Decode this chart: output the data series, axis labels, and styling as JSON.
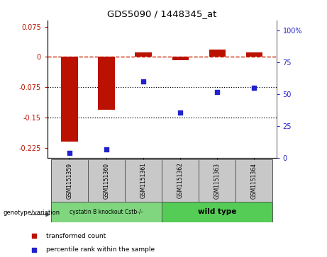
{
  "title": "GDS5090 / 1448345_at",
  "samples": [
    "GSM1151359",
    "GSM1151360",
    "GSM1151361",
    "GSM1151362",
    "GSM1151363",
    "GSM1151364"
  ],
  "red_values": [
    -0.21,
    -0.13,
    0.012,
    -0.008,
    0.018,
    0.012
  ],
  "blue_values": [
    4,
    7,
    60,
    36,
    52,
    55
  ],
  "ylim_left": [
    -0.25,
    0.09
  ],
  "ylim_right": [
    0,
    108
  ],
  "yticks_left": [
    0.075,
    0,
    -0.075,
    -0.15,
    -0.225
  ],
  "yticks_right": [
    100,
    75,
    50,
    25,
    0
  ],
  "groups": [
    {
      "label": "cystatin B knockout Cstb-/-",
      "color": "#7FD67F",
      "span": [
        0,
        2
      ]
    },
    {
      "label": "wild type",
      "color": "#55CC55",
      "span": [
        3,
        5
      ]
    }
  ],
  "genotype_label": "genotype/variation",
  "legend_red": "transformed count",
  "legend_blue": "percentile rank within the sample",
  "red_color": "#BB1100",
  "blue_color": "#2222CC",
  "dashed_line_color": "#CC2200",
  "dotted_line_color": "#000000",
  "bar_width": 0.45,
  "sample_box_color": "#C8C8C8",
  "plot_bg": "#FFFFFF"
}
